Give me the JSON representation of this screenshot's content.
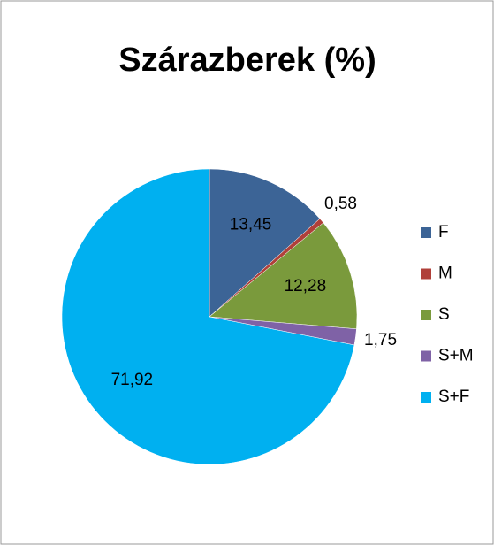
{
  "chart_data": {
    "type": "pie",
    "title": "Szárazberek (%)",
    "categories": [
      "F",
      "M",
      "S",
      "S+M",
      "S+F"
    ],
    "values": [
      13.45,
      0.58,
      12.28,
      1.75,
      71.92
    ],
    "value_labels": [
      "13,45",
      "0,58",
      "12,28",
      "1,75",
      "71,92"
    ],
    "colors": [
      "#3c6496",
      "#b0403a",
      "#7a9a3c",
      "#7f62a6",
      "#00b0f0"
    ],
    "legend": "right"
  }
}
